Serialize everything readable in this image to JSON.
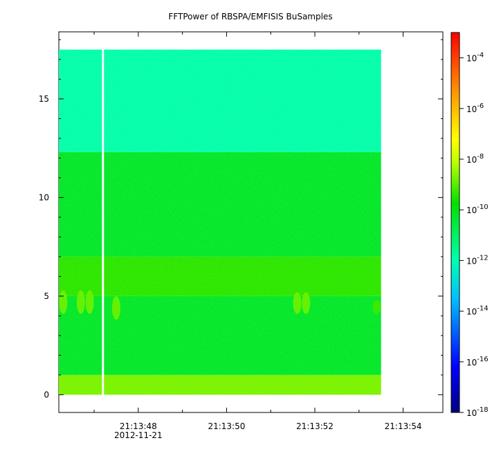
{
  "chart_data": {
    "type": "heatmap",
    "title": "FFTPower of RBSPA/EMFISIS  BuSamples",
    "xlabel": "",
    "ylabel": "",
    "x_date_label": "2012-11-21",
    "x_ticks": [
      "21:13:48",
      "21:13:50",
      "21:13:52",
      "21:13:54"
    ],
    "x_range_seconds": [
      "21:13:46.2",
      "21:13:54.9"
    ],
    "data_time_range": [
      "21:13:46.2",
      "21:13:53.5"
    ],
    "y_ticks": [
      0,
      5,
      10,
      15
    ],
    "ylim": [
      -0.9,
      18.4
    ],
    "data_y_range": [
      0,
      17.5
    ],
    "colorbar": {
      "scale": "log",
      "range": [
        1e-18,
        0.001
      ],
      "tick_labels": [
        {
          "base": "10",
          "exp": "-4",
          "value": 0.0001
        },
        {
          "base": "10",
          "exp": "-6",
          "value": 1e-06
        },
        {
          "base": "10",
          "exp": "-8",
          "value": 1e-08
        },
        {
          "base": "10",
          "exp": "-10",
          "value": 1e-10
        },
        {
          "base": "10",
          "exp": "-12",
          "value": 1e-12
        },
        {
          "base": "10",
          "exp": "-14",
          "value": 1e-14
        },
        {
          "base": "10",
          "exp": "-16",
          "value": 1e-16
        },
        {
          "base": "10",
          "exp": "-18",
          "value": 1e-18
        }
      ]
    },
    "bands": [
      {
        "y_from": 12.3,
        "y_to": 17.5,
        "log_power": -12.0
      },
      {
        "y_from": 7.0,
        "y_to": 12.3,
        "log_power": -10.3
      },
      {
        "y_from": 5.0,
        "y_to": 7.0,
        "log_power": -9.4
      },
      {
        "y_from": 1.0,
        "y_to": 5.0,
        "log_power": -10.3
      },
      {
        "y_from": 0.0,
        "y_to": 1.0,
        "log_power": -8.7
      }
    ],
    "gaps": [
      {
        "time": "21:13:47.2"
      }
    ],
    "bursts": [
      {
        "time": "21:13:46.3",
        "y_from": 4.1,
        "y_to": 5.3,
        "log_power": -8.8
      },
      {
        "time": "21:13:46.7",
        "y_from": 4.1,
        "y_to": 5.3,
        "log_power": -8.8
      },
      {
        "time": "21:13:46.9",
        "y_from": 4.1,
        "y_to": 5.3,
        "log_power": -8.8
      },
      {
        "time": "21:13:47.5",
        "y_from": 3.8,
        "y_to": 5.0,
        "log_power": -8.8
      },
      {
        "time": "21:13:51.6",
        "y_from": 4.1,
        "y_to": 5.2,
        "log_power": -8.8
      },
      {
        "time": "21:13:51.8",
        "y_from": 4.1,
        "y_to": 5.2,
        "log_power": -8.8
      },
      {
        "time": "21:13:53.4",
        "y_from": 4.1,
        "y_to": 4.8,
        "log_power": -9.2
      }
    ],
    "grid": false,
    "legend": "colorbar-right"
  }
}
